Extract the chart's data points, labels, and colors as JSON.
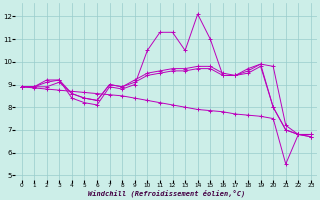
{
  "xlabel": "Windchill (Refroidissement éolien,°C)",
  "ylabel": "",
  "background_color": "#cceee8",
  "line_color": "#bb00bb",
  "grid_color": "#99cccc",
  "xlim": [
    -0.5,
    23.5
  ],
  "ylim": [
    4.8,
    12.6
  ],
  "yticks": [
    5,
    6,
    7,
    8,
    9,
    10,
    11,
    12
  ],
  "xticks": [
    0,
    1,
    2,
    3,
    4,
    5,
    6,
    7,
    8,
    9,
    10,
    11,
    12,
    13,
    14,
    15,
    16,
    17,
    18,
    19,
    20,
    21,
    22,
    23
  ],
  "series": [
    {
      "x": [
        0,
        1,
        2,
        3,
        4,
        5,
        6,
        7,
        8,
        9,
        10,
        11,
        12,
        13,
        14,
        15,
        16,
        17,
        18,
        19,
        20,
        21,
        22,
        23
      ],
      "y": [
        8.9,
        8.9,
        9.1,
        9.2,
        8.4,
        8.2,
        8.1,
        8.9,
        8.8,
        9.0,
        10.5,
        11.3,
        11.3,
        10.5,
        12.1,
        11.0,
        9.4,
        9.4,
        9.7,
        9.9,
        8.0,
        7.0,
        6.8,
        6.8
      ]
    },
    {
      "x": [
        0,
        1,
        2,
        3,
        4,
        5,
        6,
        7,
        8,
        9,
        10,
        11,
        12,
        13,
        14,
        15,
        16,
        17,
        18,
        19,
        20,
        21,
        22,
        23
      ],
      "y": [
        8.9,
        8.9,
        9.2,
        9.2,
        8.6,
        8.4,
        8.3,
        9.0,
        8.9,
        9.2,
        9.5,
        9.6,
        9.7,
        9.7,
        9.8,
        9.8,
        9.5,
        9.4,
        9.6,
        9.9,
        9.8,
        7.2,
        6.8,
        6.7
      ]
    },
    {
      "x": [
        0,
        1,
        2,
        3,
        4,
        5,
        6,
        7,
        8,
        9,
        10,
        11,
        12,
        13,
        14,
        15,
        16,
        17,
        18,
        19,
        20,
        21,
        22,
        23
      ],
      "y": [
        8.9,
        8.85,
        8.8,
        8.75,
        8.7,
        8.65,
        8.6,
        8.55,
        8.5,
        8.4,
        8.3,
        8.2,
        8.1,
        8.0,
        7.9,
        7.85,
        7.8,
        7.7,
        7.65,
        7.6,
        7.5,
        5.5,
        6.8,
        6.7
      ]
    },
    {
      "x": [
        0,
        1,
        2,
        3,
        4,
        5,
        6,
        7,
        8,
        9,
        10,
        11,
        12,
        13,
        14,
        15,
        16,
        17,
        18,
        19,
        20,
        21,
        22,
        23
      ],
      "y": [
        8.9,
        8.9,
        8.9,
        9.1,
        8.6,
        8.4,
        8.3,
        9.0,
        8.9,
        9.1,
        9.4,
        9.5,
        9.6,
        9.6,
        9.7,
        9.7,
        9.4,
        9.4,
        9.5,
        9.8,
        8.0,
        7.0,
        6.8,
        6.8
      ]
    }
  ]
}
